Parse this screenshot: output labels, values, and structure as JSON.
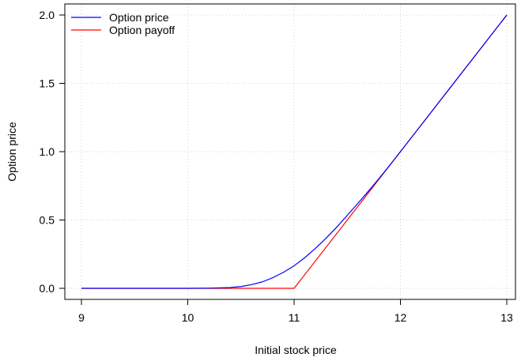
{
  "chart_data": {
    "type": "line",
    "title": "",
    "xlabel": "Initial stock price",
    "ylabel": "Option price",
    "xlim": [
      9,
      13
    ],
    "ylim": [
      0,
      2
    ],
    "xticks": [
      "9",
      "10",
      "11",
      "12",
      "13"
    ],
    "yticks": [
      "0.0",
      "0.5",
      "1.0",
      "1.5",
      "2.0"
    ],
    "grid": true,
    "legend_position": "top-left",
    "series": [
      {
        "name": "Option price",
        "color": "#0000ff",
        "x": [
          9.0,
          9.5,
          10.0,
          10.2,
          10.4,
          10.5,
          10.6,
          10.7,
          10.8,
          10.9,
          11.0,
          11.1,
          11.2,
          11.3,
          11.4,
          11.5,
          11.6,
          11.7,
          11.8,
          11.9,
          12.0,
          12.5,
          13.0
        ],
        "y": [
          0.0,
          0.0,
          0.0,
          0.001,
          0.006,
          0.013,
          0.027,
          0.047,
          0.078,
          0.117,
          0.165,
          0.224,
          0.292,
          0.366,
          0.447,
          0.534,
          0.622,
          0.712,
          0.805,
          0.901,
          1.0,
          1.5,
          2.0
        ]
      },
      {
        "name": "Option payoff",
        "color": "#ff0000",
        "x": [
          9.0,
          11.0,
          13.0
        ],
        "y": [
          0.0,
          0.0,
          2.0
        ]
      }
    ]
  }
}
